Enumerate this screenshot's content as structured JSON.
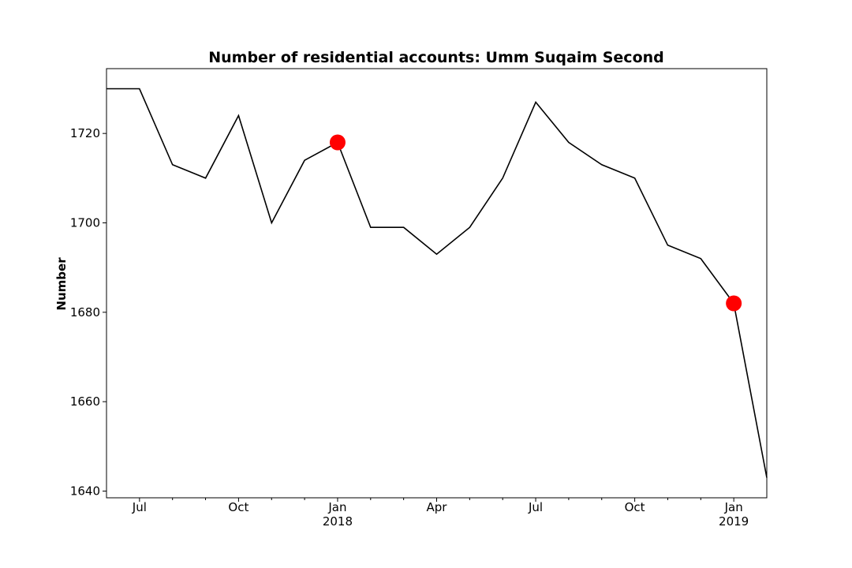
{
  "chart_data": {
    "type": "line",
    "title": "Number of residential accounts: Umm Suqaim Second",
    "xlabel": "",
    "ylabel": "Number",
    "ylim": [
      1638.5,
      1734.5
    ],
    "y_ticks": [
      1640,
      1660,
      1680,
      1700,
      1720
    ],
    "xlim": [
      "2017-06",
      "2019-02"
    ],
    "x_ticks": [
      {
        "x": "2017-07",
        "label": "Jul",
        "year": ""
      },
      {
        "x": "2017-10",
        "label": "Oct",
        "year": ""
      },
      {
        "x": "2018-01",
        "label": "Jan",
        "year": "2018"
      },
      {
        "x": "2018-04",
        "label": "Apr",
        "year": ""
      },
      {
        "x": "2018-07",
        "label": "Jul",
        "year": ""
      },
      {
        "x": "2018-10",
        "label": "Oct",
        "year": ""
      },
      {
        "x": "2019-01",
        "label": "Jan",
        "year": "2019"
      }
    ],
    "x_minor_ticks": [
      "2017-08",
      "2017-09",
      "2017-11",
      "2017-12",
      "2018-02",
      "2018-03",
      "2018-05",
      "2018-06",
      "2018-08",
      "2018-09",
      "2018-11",
      "2018-12"
    ],
    "grid": false,
    "series": [
      {
        "color": "#000000",
        "x": [
          "2017-06",
          "2017-07",
          "2017-08",
          "2017-09",
          "2017-10",
          "2017-11",
          "2017-12",
          "2018-01",
          "2018-02",
          "2018-03",
          "2018-04",
          "2018-05",
          "2018-06",
          "2018-07",
          "2018-08",
          "2018-09",
          "2018-10",
          "2018-11",
          "2018-12",
          "2019-01",
          "2019-02"
        ],
        "values": [
          1730,
          1730,
          1713,
          1710,
          1724,
          1700,
          1714,
          1718,
          1699,
          1699,
          1693,
          1699,
          1710,
          1727,
          1718,
          1713,
          1710,
          1695,
          1692,
          1682,
          1643
        ]
      }
    ],
    "highlights": [
      {
        "x": "2018-01",
        "value": 1718,
        "color": "#ff0000"
      },
      {
        "x": "2019-01",
        "value": 1682,
        "color": "#ff0000"
      }
    ]
  }
}
